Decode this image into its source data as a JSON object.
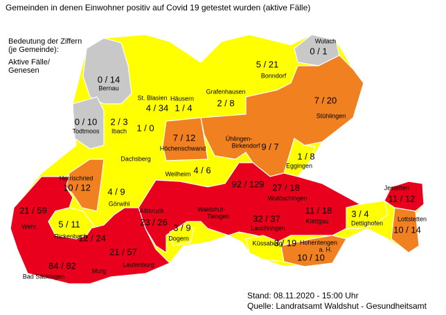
{
  "title": "Gemeinden in denen Einwohner positiv auf Covid 19 getestet wurden (aktive Fälle)",
  "legend": {
    "lines": [
      "Bedeutung der Ziffern",
      "(je Gemeinde):",
      "Aktive Fälle/",
      "Genesen"
    ]
  },
  "footer": {
    "date": "Stand: 08.11.2020 - 15:00 Uhr",
    "source": "Quelle: Landratsamt Waldshut - Gesundheitsamt"
  },
  "municipalities": [
    {
      "name_lines": [
        "Bernau"
      ],
      "cases": "0 / 14"
    },
    {
      "name_lines": [
        "Todtmoos"
      ],
      "cases": "0 / 10"
    },
    {
      "name_lines": [
        "Wutach"
      ],
      "cases": "0 / 1"
    },
    {
      "name_lines": [
        "St. Blasien"
      ],
      "cases": "4 / 34"
    },
    {
      "name_lines": [
        "Häusern"
      ],
      "cases": "1 / 4"
    },
    {
      "name_lines": [
        "Ibach"
      ],
      "cases": "2 / 3"
    },
    {
      "name_lines": [
        "Dachsberg"
      ],
      "cases": "1 / 0"
    },
    {
      "name_lines": [
        "Höchenschwand"
      ],
      "cases": "7 / 12"
    },
    {
      "name_lines": [
        "Grafenhausen"
      ],
      "cases": "2 / 8"
    },
    {
      "name_lines": [
        "Bonndorf"
      ],
      "cases": "5 / 21"
    },
    {
      "name_lines": [
        "Stühlingen"
      ],
      "cases": "7 / 20"
    },
    {
      "name_lines": [
        "Ühlingen-",
        "Birkendorf"
      ],
      "cases": "9 / 7"
    },
    {
      "name_lines": [
        "Eggingen"
      ],
      "cases": "1 / 8"
    },
    {
      "name_lines": [
        "Weilheim"
      ],
      "cases": "4 / 6"
    },
    {
      "name_lines": [
        "Herrischried"
      ],
      "cases": "10 / 12"
    },
    {
      "name_lines": [
        "Görwihl"
      ],
      "cases": "4 / 9"
    },
    {
      "name_lines": [
        "Wehr"
      ],
      "cases": "21 / 59"
    },
    {
      "name_lines": [
        "Rickenbach"
      ],
      "cases": "5 / 11"
    },
    {
      "name_lines": [
        "Albbruck"
      ],
      "cases": "23 / 26"
    },
    {
      "name_lines": [
        "Dogern"
      ],
      "cases": "3 / 9"
    },
    {
      "name_lines": [
        "Waldshut-",
        "Tiengen"
      ],
      "cases": "92 / 129"
    },
    {
      "name_lines": [
        "Wutöschingen"
      ],
      "cases": "27 / 18"
    },
    {
      "name_lines": [
        "Lauchringen"
      ],
      "cases": "32 / 37"
    },
    {
      "name_lines": [
        "Klettgau"
      ],
      "cases": "11 / 18"
    },
    {
      "name_lines": [
        "Dettighofen"
      ],
      "cases": "3 / 4"
    },
    {
      "name_lines": [
        "Jestetten"
      ],
      "cases": "11 / 12"
    },
    {
      "name_lines": [
        "Lottstetten"
      ],
      "cases": "10 / 14"
    },
    {
      "name_lines": [
        "Küssaberg"
      ],
      "cases": "3 / 19"
    },
    {
      "name_lines": [
        "Hohentengen",
        "a. H."
      ],
      "cases": "10 / 10"
    },
    {
      "name_lines": [
        "Murg"
      ],
      "cases": "21 / 57"
    },
    {
      "name_lines": [
        "Laufenburg"
      ],
      "cases": "12 / 24"
    },
    {
      "name_lines": [
        "Bad Säckingen"
      ],
      "cases": "84 / 82"
    }
  ]
}
